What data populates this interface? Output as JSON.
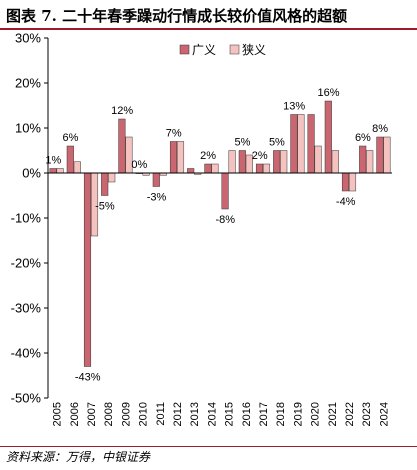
{
  "figure": {
    "title": "图表 7. 二十年春季躁动行情成长较价值风格的超额",
    "source": "资料来源：万得，中银证券"
  },
  "colors": {
    "series1": "#c9666f",
    "series2": "#f4c3c0",
    "stroke": "#333333",
    "title_rule": "#9c1c2c"
  },
  "chart_data": {
    "type": "bar",
    "categories": [
      "2005",
      "2006",
      "2007",
      "2008",
      "2009",
      "2010",
      "2011",
      "2012",
      "2013",
      "2014",
      "2015",
      "2016",
      "2017",
      "2018",
      "2019",
      "2020",
      "2021",
      "2022",
      "2023",
      "2024"
    ],
    "series": [
      {
        "name": "广义",
        "values": [
          1,
          6,
          -43,
          -5,
          12,
          0,
          -3,
          7,
          1,
          2,
          -8,
          5,
          2,
          5,
          13,
          13,
          16,
          -4,
          6,
          8
        ]
      },
      {
        "name": "狭义",
        "values": [
          1,
          2.5,
          -14,
          -2,
          8,
          -0.5,
          -0.5,
          7,
          -0.3,
          2,
          5,
          4,
          2,
          5,
          13,
          6,
          5,
          -4,
          5,
          8
        ]
      }
    ],
    "data_labels": [
      "1%",
      "6%",
      "-43%",
      "-5%",
      "12%",
      "0%",
      "-3%",
      "7%",
      "",
      "2%",
      "-8%",
      "5%",
      "2%",
      "5%",
      "13%",
      "",
      "16%",
      "-4%",
      "6%",
      "8%"
    ],
    "y_ticks": [
      "30%",
      "20%",
      "10%",
      "0%",
      "-10%",
      "-20%",
      "-30%",
      "-40%",
      "-50%"
    ],
    "ylim": [
      -50,
      30
    ],
    "legend": "top-center",
    "grid": false
  }
}
